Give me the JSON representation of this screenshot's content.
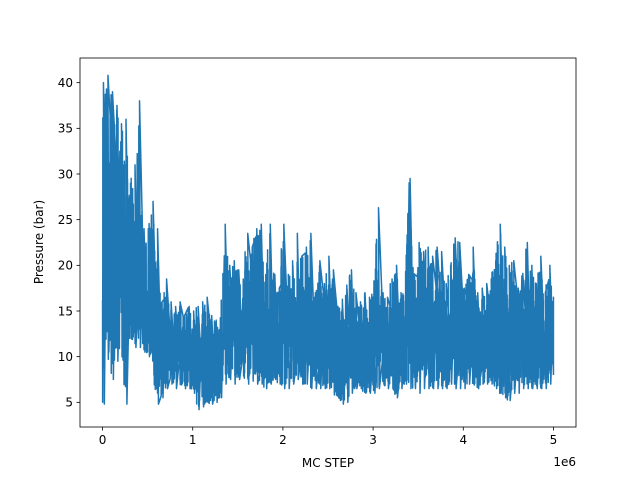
{
  "chart_data": {
    "type": "line",
    "title": "",
    "xlabel": "MC STEP",
    "ylabel": "Pressure (bar)",
    "x_offset_text": "1e6",
    "xlim": [
      -0.25,
      5.25
    ],
    "ylim": [
      2.3,
      42.7
    ],
    "x_ticks": [
      0,
      1,
      2,
      3,
      4,
      5
    ],
    "y_ticks": [
      5,
      10,
      15,
      20,
      25,
      30,
      35,
      40
    ],
    "grid": false,
    "legend": "none",
    "colors": {
      "series": "#1f77b4"
    },
    "series": [
      {
        "x_unit_scale": 1000000,
        "x": [
          0.0,
          0.05,
          0.1,
          0.15,
          0.2,
          0.25,
          0.3,
          0.35,
          0.4,
          0.45,
          0.5,
          0.55,
          0.6,
          0.65,
          0.7,
          0.75,
          0.8,
          0.85,
          0.9,
          0.95,
          1.0,
          1.05,
          1.1,
          1.15,
          1.2,
          1.25,
          1.3,
          1.35,
          1.4,
          1.45,
          1.5,
          1.55,
          1.6,
          1.65,
          1.7,
          1.75,
          1.8,
          1.85,
          1.9,
          1.95,
          2.0,
          2.05,
          2.1,
          2.15,
          2.2,
          2.25,
          2.3,
          2.35,
          2.4,
          2.45,
          2.5,
          2.55,
          2.6,
          2.65,
          2.7,
          2.75,
          2.8,
          2.85,
          2.9,
          2.95,
          3.0,
          3.05,
          3.1,
          3.15,
          3.2,
          3.25,
          3.3,
          3.35,
          3.4,
          3.45,
          3.5,
          3.55,
          3.6,
          3.65,
          3.7,
          3.75,
          3.8,
          3.85,
          3.9,
          3.95,
          4.0,
          4.05,
          4.1,
          4.15,
          4.2,
          4.25,
          4.3,
          4.35,
          4.4,
          4.45,
          4.5,
          4.55,
          4.6,
          4.65,
          4.7,
          4.75,
          4.8,
          4.85,
          4.9,
          4.95,
          5.0
        ],
        "y_high": [
          40,
          40.8,
          39,
          37.5,
          35.5,
          36,
          29,
          31,
          38,
          24,
          24,
          27,
          24,
          16,
          18.5,
          16,
          15.5,
          16,
          14.5,
          15.5,
          15,
          15.5,
          16,
          16.5,
          14.5,
          14,
          13,
          24.5,
          20,
          20.5,
          19.5,
          18.5,
          23.5,
          22,
          24,
          24.5,
          19,
          24.5,
          19,
          17.5,
          24.5,
          19,
          20,
          23.5,
          21,
          22,
          23.5,
          17,
          20.5,
          18,
          21,
          19.5,
          15.5,
          16,
          17.5,
          19.5,
          17,
          16,
          17,
          16.5,
          17,
          26.3,
          17,
          16.5,
          18.5,
          20,
          17,
          17,
          29.5,
          19,
          22.5,
          21.5,
          22,
          21,
          22,
          21.5,
          18,
          20,
          23,
          22.5,
          17.5,
          19,
          22,
          17,
          17.5,
          18,
          18.5,
          20.5,
          24.5,
          22,
          20,
          20.5,
          17.5,
          19,
          22.5,
          20,
          18,
          21,
          17,
          20,
          16.5
        ],
        "y_low": [
          4.8,
          10.5,
          7.5,
          9.5,
          11,
          4.8,
          12,
          11,
          11,
          10.5,
          10,
          8,
          4.8,
          5.5,
          6.5,
          7,
          6.5,
          7,
          6.5,
          6.5,
          6,
          4.2,
          4.5,
          5,
          4.8,
          5,
          5.5,
          7,
          7.5,
          7,
          7.5,
          8,
          7,
          7.5,
          7,
          7,
          6.5,
          7,
          7.5,
          7,
          6.5,
          6.5,
          7,
          7.5,
          7,
          7,
          6.5,
          6.5,
          6.5,
          6.5,
          6.5,
          6,
          5.5,
          4.8,
          5,
          6,
          6.5,
          6.5,
          6,
          6,
          6,
          6.5,
          7,
          6.5,
          6.5,
          5.5,
          6.5,
          7,
          6.5,
          6.5,
          6,
          6.5,
          6.5,
          6.5,
          6.5,
          6.5,
          6.5,
          7,
          6.5,
          6.5,
          6.5,
          7,
          7,
          6.5,
          7,
          7,
          7,
          6.5,
          6,
          5.5,
          5.2,
          6,
          6,
          6.5,
          6.5,
          6.5,
          6.5,
          6.5,
          6.5,
          7,
          8
        ]
      }
    ]
  }
}
